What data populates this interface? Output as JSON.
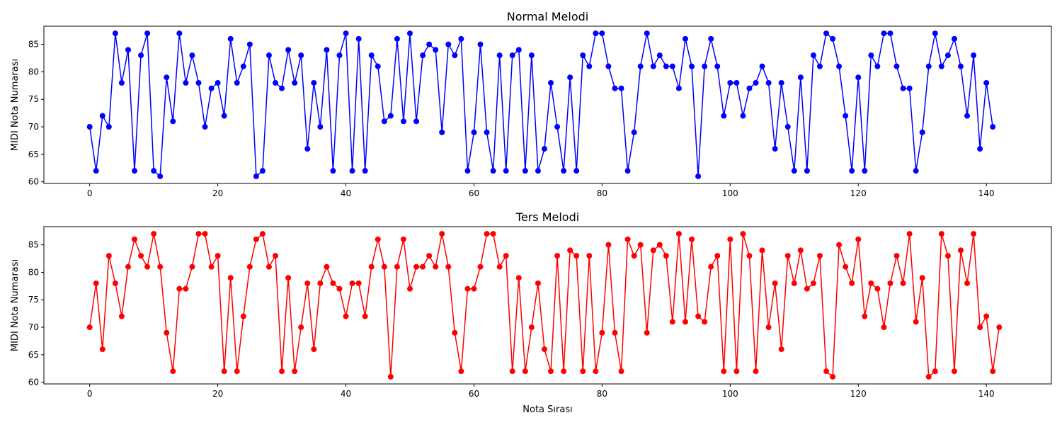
{
  "figure": {
    "xlabel": "Nota Sırası"
  },
  "chart_data": [
    {
      "type": "line",
      "title": "Normal Melodi",
      "xlabel": "",
      "ylabel": "MIDI Nota Numarası",
      "color": "#0000ff",
      "marker": "circle",
      "xlim": [
        -7.15,
        150.15
      ],
      "ylim": [
        59.7,
        88.3
      ],
      "xticks": [
        0,
        20,
        40,
        60,
        80,
        100,
        120,
        140
      ],
      "yticks": [
        60,
        65,
        70,
        75,
        80,
        85
      ],
      "grid": false,
      "values": [
        70,
        62,
        72,
        70,
        87,
        78,
        84,
        62,
        83,
        87,
        62,
        61,
        79,
        71,
        87,
        78,
        83,
        78,
        70,
        77,
        78,
        72,
        86,
        78,
        81,
        85,
        61,
        62,
        83,
        78,
        77,
        84,
        78,
        83,
        66,
        78,
        70,
        84,
        62,
        83,
        87,
        62,
        86,
        62,
        83,
        81,
        71,
        72,
        86,
        71,
        87,
        71,
        83,
        85,
        84,
        69,
        85,
        83,
        86,
        62,
        69,
        85,
        69,
        62,
        83,
        62,
        83,
        84,
        62,
        83,
        62,
        66,
        78,
        70,
        62,
        79,
        62,
        83,
        81,
        87,
        87,
        81,
        77,
        77,
        62,
        69,
        81,
        87,
        81,
        83,
        81,
        81,
        77,
        86,
        81,
        61,
        81,
        86,
        81,
        72,
        78,
        78,
        72,
        77,
        78,
        81,
        78,
        66,
        78,
        70,
        62,
        79,
        62,
        83,
        81,
        87,
        86,
        81,
        72,
        62,
        79,
        62,
        83,
        81,
        87,
        87,
        81,
        77,
        77,
        62,
        69,
        81,
        87,
        81,
        83,
        86,
        81,
        72,
        83,
        66,
        78,
        70
      ]
    },
    {
      "type": "line",
      "title": "Ters Melodi",
      "xlabel": "Nota Sırası",
      "ylabel": "MIDI Nota Numarası",
      "color": "#ff0000",
      "marker": "circle",
      "xlim": [
        -7.15,
        150.15
      ],
      "ylim": [
        59.7,
        88.3
      ],
      "xticks": [
        0,
        20,
        40,
        60,
        80,
        100,
        120,
        140
      ],
      "yticks": [
        60,
        65,
        70,
        75,
        80,
        85
      ],
      "grid": false,
      "values": [
        70,
        78,
        66,
        83,
        78,
        72,
        81,
        86,
        83,
        81,
        87,
        81,
        69,
        62,
        77,
        77,
        81,
        87,
        87,
        81,
        83,
        62,
        79,
        62,
        72,
        81,
        86,
        87,
        81,
        83,
        62,
        79,
        62,
        70,
        78,
        66,
        78,
        81,
        78,
        77,
        72,
        78,
        78,
        72,
        81,
        86,
        81,
        61,
        81,
        86,
        77,
        81,
        81,
        83,
        81,
        87,
        81,
        69,
        62,
        77,
        77,
        81,
        87,
        87,
        81,
        83,
        62,
        79,
        62,
        70,
        78,
        66,
        62,
        83,
        62,
        84,
        83,
        62,
        83,
        62,
        69,
        85,
        69,
        62,
        86,
        83,
        85,
        69,
        84,
        85,
        83,
        71,
        87,
        71,
        86,
        72,
        71,
        81,
        83,
        62,
        86,
        62,
        87,
        83,
        62,
        84,
        70,
        78,
        66,
        83,
        78,
        84,
        77,
        78,
        83,
        62,
        61,
        85,
        81,
        78,
        86,
        72,
        78,
        77,
        70,
        78,
        83,
        78,
        87,
        71,
        79,
        61,
        62,
        87,
        83,
        62,
        84,
        78,
        87,
        70,
        72,
        62,
        70
      ]
    }
  ]
}
